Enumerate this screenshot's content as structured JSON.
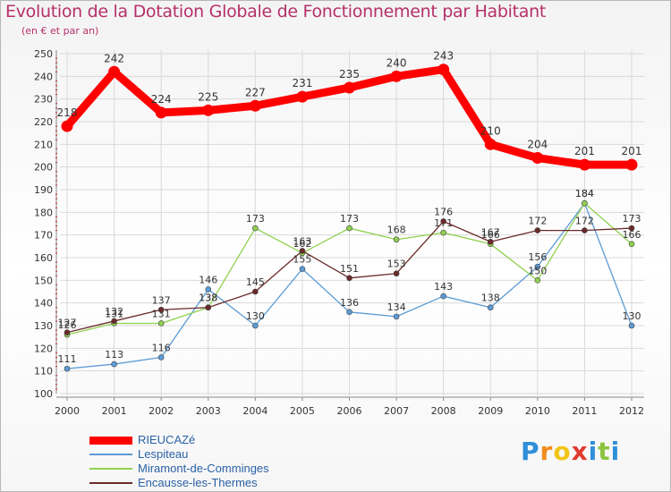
{
  "header": {
    "title": "Evolution de la Dotation Globale de Fonctionnement par Habitant",
    "subtitle": "(en € et par an)"
  },
  "colors": {
    "title": "#b5306a",
    "axis_text": "#333333",
    "grid": "#d9d9d9",
    "legend_text": "#2a61a6"
  },
  "chart_data": {
    "type": "line",
    "title": "Evolution de la Dotation Globale de Fonctionnement par Habitant",
    "subtitle": "(en € et par an)",
    "xlabel": "",
    "ylabel": "",
    "x": [
      "2000",
      "2001",
      "2002",
      "2003",
      "2004",
      "2005",
      "2006",
      "2007",
      "2008",
      "2009",
      "2010",
      "2011",
      "2012"
    ],
    "ylim": [
      100,
      250
    ],
    "yticks": [
      100,
      110,
      120,
      130,
      140,
      150,
      160,
      170,
      180,
      190,
      200,
      210,
      220,
      230,
      240,
      250
    ],
    "grid": true,
    "legend_position": "bottom-left",
    "series": [
      {
        "name": "RIEUCAZé",
        "color": "#ff0000",
        "style": "thick",
        "values": [
          218,
          242,
          224,
          225,
          227,
          231,
          235,
          240,
          243,
          210,
          204,
          201,
          201
        ],
        "labels": [
          "218",
          "242",
          "224",
          "225",
          "227",
          "231",
          "235",
          "240",
          "243",
          "210",
          "204",
          "201",
          "201"
        ]
      },
      {
        "name": "Lespiteau",
        "color": "#5b9bd5",
        "style": "thin",
        "values": [
          111,
          113,
          116,
          146,
          130,
          155,
          136,
          134,
          143,
          138,
          156,
          184,
          130
        ],
        "labels": [
          "111",
          "113",
          "116",
          "146",
          "130",
          "155",
          "136",
          "134",
          "143",
          "138",
          "156",
          "184",
          "130"
        ]
      },
      {
        "name": "Miramont-de-Comminges",
        "color": "#8fd14f",
        "style": "thin",
        "values": [
          126,
          131,
          131,
          138,
          173,
          162,
          173,
          168,
          171,
          166,
          150,
          184,
          166
        ],
        "labels": [
          "126",
          "131",
          "131",
          "138",
          "173",
          "162",
          "173",
          "168",
          "171",
          "166",
          "150",
          "184",
          "166"
        ]
      },
      {
        "name": "Encausse-les-Thermes",
        "color": "#6b2a2a",
        "style": "thin",
        "values": [
          127,
          132,
          137,
          138,
          145,
          163,
          151,
          153,
          176,
          167,
          172,
          172,
          173
        ],
        "labels": [
          "127",
          "132",
          "137",
          "138",
          "145",
          "163",
          "151",
          "153",
          "176",
          "167",
          "172",
          "172",
          "173"
        ]
      }
    ]
  },
  "logo": {
    "letters": [
      "P",
      "r",
      "o",
      "x",
      "i",
      "t",
      "i"
    ],
    "colors": [
      "#2f8fd8",
      "#f28c1f",
      "#f2c417",
      "#e03c31",
      "#2f8fd8",
      "#8ac43f",
      "#2f8fd8"
    ]
  }
}
